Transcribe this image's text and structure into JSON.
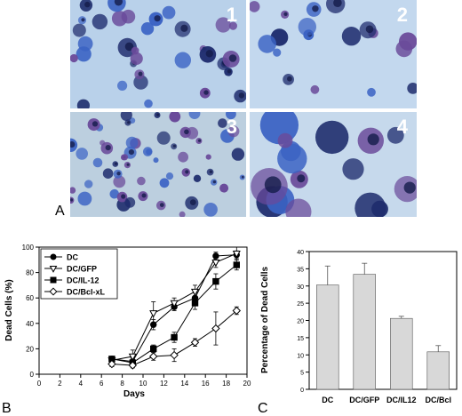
{
  "panel_a": {
    "letter": "A",
    "images": [
      {
        "label": "1",
        "bg": "#b9d1ea"
      },
      {
        "label": "2",
        "bg": "#c3d8ee"
      },
      {
        "label": "3",
        "bg": "#bccfdf"
      },
      {
        "label": "4",
        "bg": "#c6d9ec"
      }
    ],
    "cell_colors": {
      "blue": "#3b63c4",
      "dark": "#1f2d6e",
      "purple": "#6a4a9a"
    }
  },
  "chart_data": [
    {
      "type": "line",
      "panel_letter": "B",
      "xlabel": "Days",
      "ylabel": "Dead Cells (%)",
      "xlim": [
        0,
        20
      ],
      "ylim": [
        0,
        100
      ],
      "xticks": [
        0,
        2,
        4,
        6,
        8,
        10,
        12,
        14,
        16,
        18,
        20
      ],
      "yticks": [
        0,
        20,
        40,
        60,
        80,
        100
      ],
      "legend_position": "top-left",
      "series": [
        {
          "name": "DC",
          "marker": "filled-circle",
          "x": [
            7,
            9,
            11,
            13,
            15,
            17,
            19
          ],
          "y": [
            12,
            10,
            39,
            53,
            60,
            93,
            94
          ],
          "err": [
            2,
            3,
            4,
            3,
            4,
            3,
            3
          ]
        },
        {
          "name": "DC/GFP",
          "marker": "open-triangle",
          "x": [
            7,
            9,
            11,
            13,
            15,
            17,
            19
          ],
          "y": [
            11,
            14,
            48,
            56,
            65,
            88,
            95
          ],
          "err": [
            2,
            5,
            9,
            4,
            5,
            4,
            5
          ]
        },
        {
          "name": "DC/IL-12",
          "marker": "filled-square",
          "x": [
            7,
            9,
            11,
            13,
            15,
            17,
            19
          ],
          "y": [
            12,
            9,
            20,
            29,
            56,
            73,
            86
          ],
          "err": [
            2,
            3,
            3,
            4,
            5,
            6,
            4
          ]
        },
        {
          "name": "DC/Bcl-xL",
          "marker": "open-diamond",
          "x": [
            7,
            9,
            11,
            13,
            15,
            17,
            19
          ],
          "y": [
            8,
            7,
            14,
            15,
            25,
            36,
            50
          ],
          "err": [
            2,
            2,
            3,
            5,
            3,
            13,
            3
          ]
        }
      ]
    },
    {
      "type": "bar",
      "panel_letter": "C",
      "ylabel": "Percentage of Dead Cells",
      "ylim": [
        0,
        40
      ],
      "yticks": [
        0,
        5,
        10,
        15,
        20,
        25,
        30,
        35,
        40
      ],
      "categories": [
        "DC",
        "DC/GFP",
        "DC/IL12",
        "DC/Bcl"
      ],
      "values": [
        30.3,
        33.4,
        20.6,
        10.9
      ],
      "errors": [
        5.5,
        3.2,
        0.6,
        1.8
      ],
      "bar_color": "#d8d8d8"
    }
  ]
}
